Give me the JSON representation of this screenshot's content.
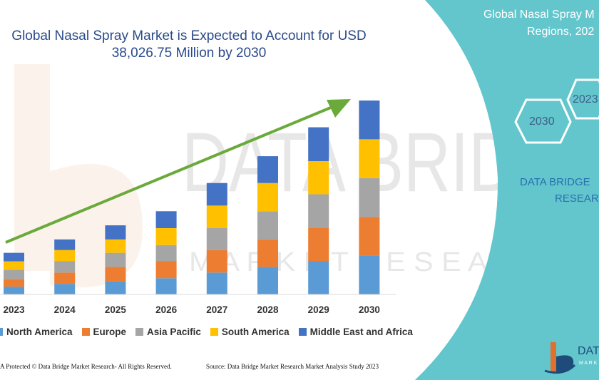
{
  "title_line1": "Global Nasal Spray Market is Expected to Account for USD",
  "title_line2": "38,026.75 Million by 2030",
  "right_panel": {
    "title_line1": "Global Nasal Spray M",
    "title_line2": "Regions, 202",
    "hex_2023": "2023",
    "hex_2030": "2030",
    "brand_line1": "DATA BRIDGE",
    "brand_line2": "RESEAR",
    "logo_text": "DAT",
    "logo_subtext": "M A R K"
  },
  "watermark": {
    "line1": "DATA BRIDGE",
    "line2": "M A R K E T   R E S E A R C H"
  },
  "footer_left": "A Protected © Data Bridge Market Research- All Rights Reserved.",
  "footer_right": "Source: Data Bridge Market Research Market Analysis Study 2023",
  "colors": {
    "North America": "#5b9bd5",
    "Europe": "#ed7d31",
    "Asia Pacific": "#a5a5a5",
    "South America": "#ffc000",
    "Middle East and Africa": "#4472c4",
    "arrow": "#6aaa3a",
    "panel": "#62c6cc"
  },
  "chart_data": {
    "type": "bar",
    "stacked": true,
    "categories": [
      "2023",
      "2024",
      "2025",
      "2026",
      "2027",
      "2028",
      "2029",
      "2030"
    ],
    "series": [
      {
        "name": "North America",
        "values": [
          11,
          15,
          19,
          23,
          31,
          39,
          47,
          55
        ]
      },
      {
        "name": "Europe",
        "values": [
          11,
          16,
          20,
          24,
          32,
          39,
          47,
          55
        ]
      },
      {
        "name": "Asia Pacific",
        "values": [
          13,
          16,
          20,
          23,
          31,
          40,
          48,
          55
        ]
      },
      {
        "name": "South America",
        "values": [
          12,
          16,
          19,
          24,
          32,
          40,
          47,
          55
        ]
      },
      {
        "name": "Middle East and Africa",
        "values": [
          12,
          15,
          20,
          24,
          32,
          38,
          48,
          55
        ]
      }
    ],
    "ylim": [
      0,
      280
    ],
    "y_axis_visible": false,
    "grid": false,
    "legend_position": "bottom",
    "trend_arrow": true
  }
}
